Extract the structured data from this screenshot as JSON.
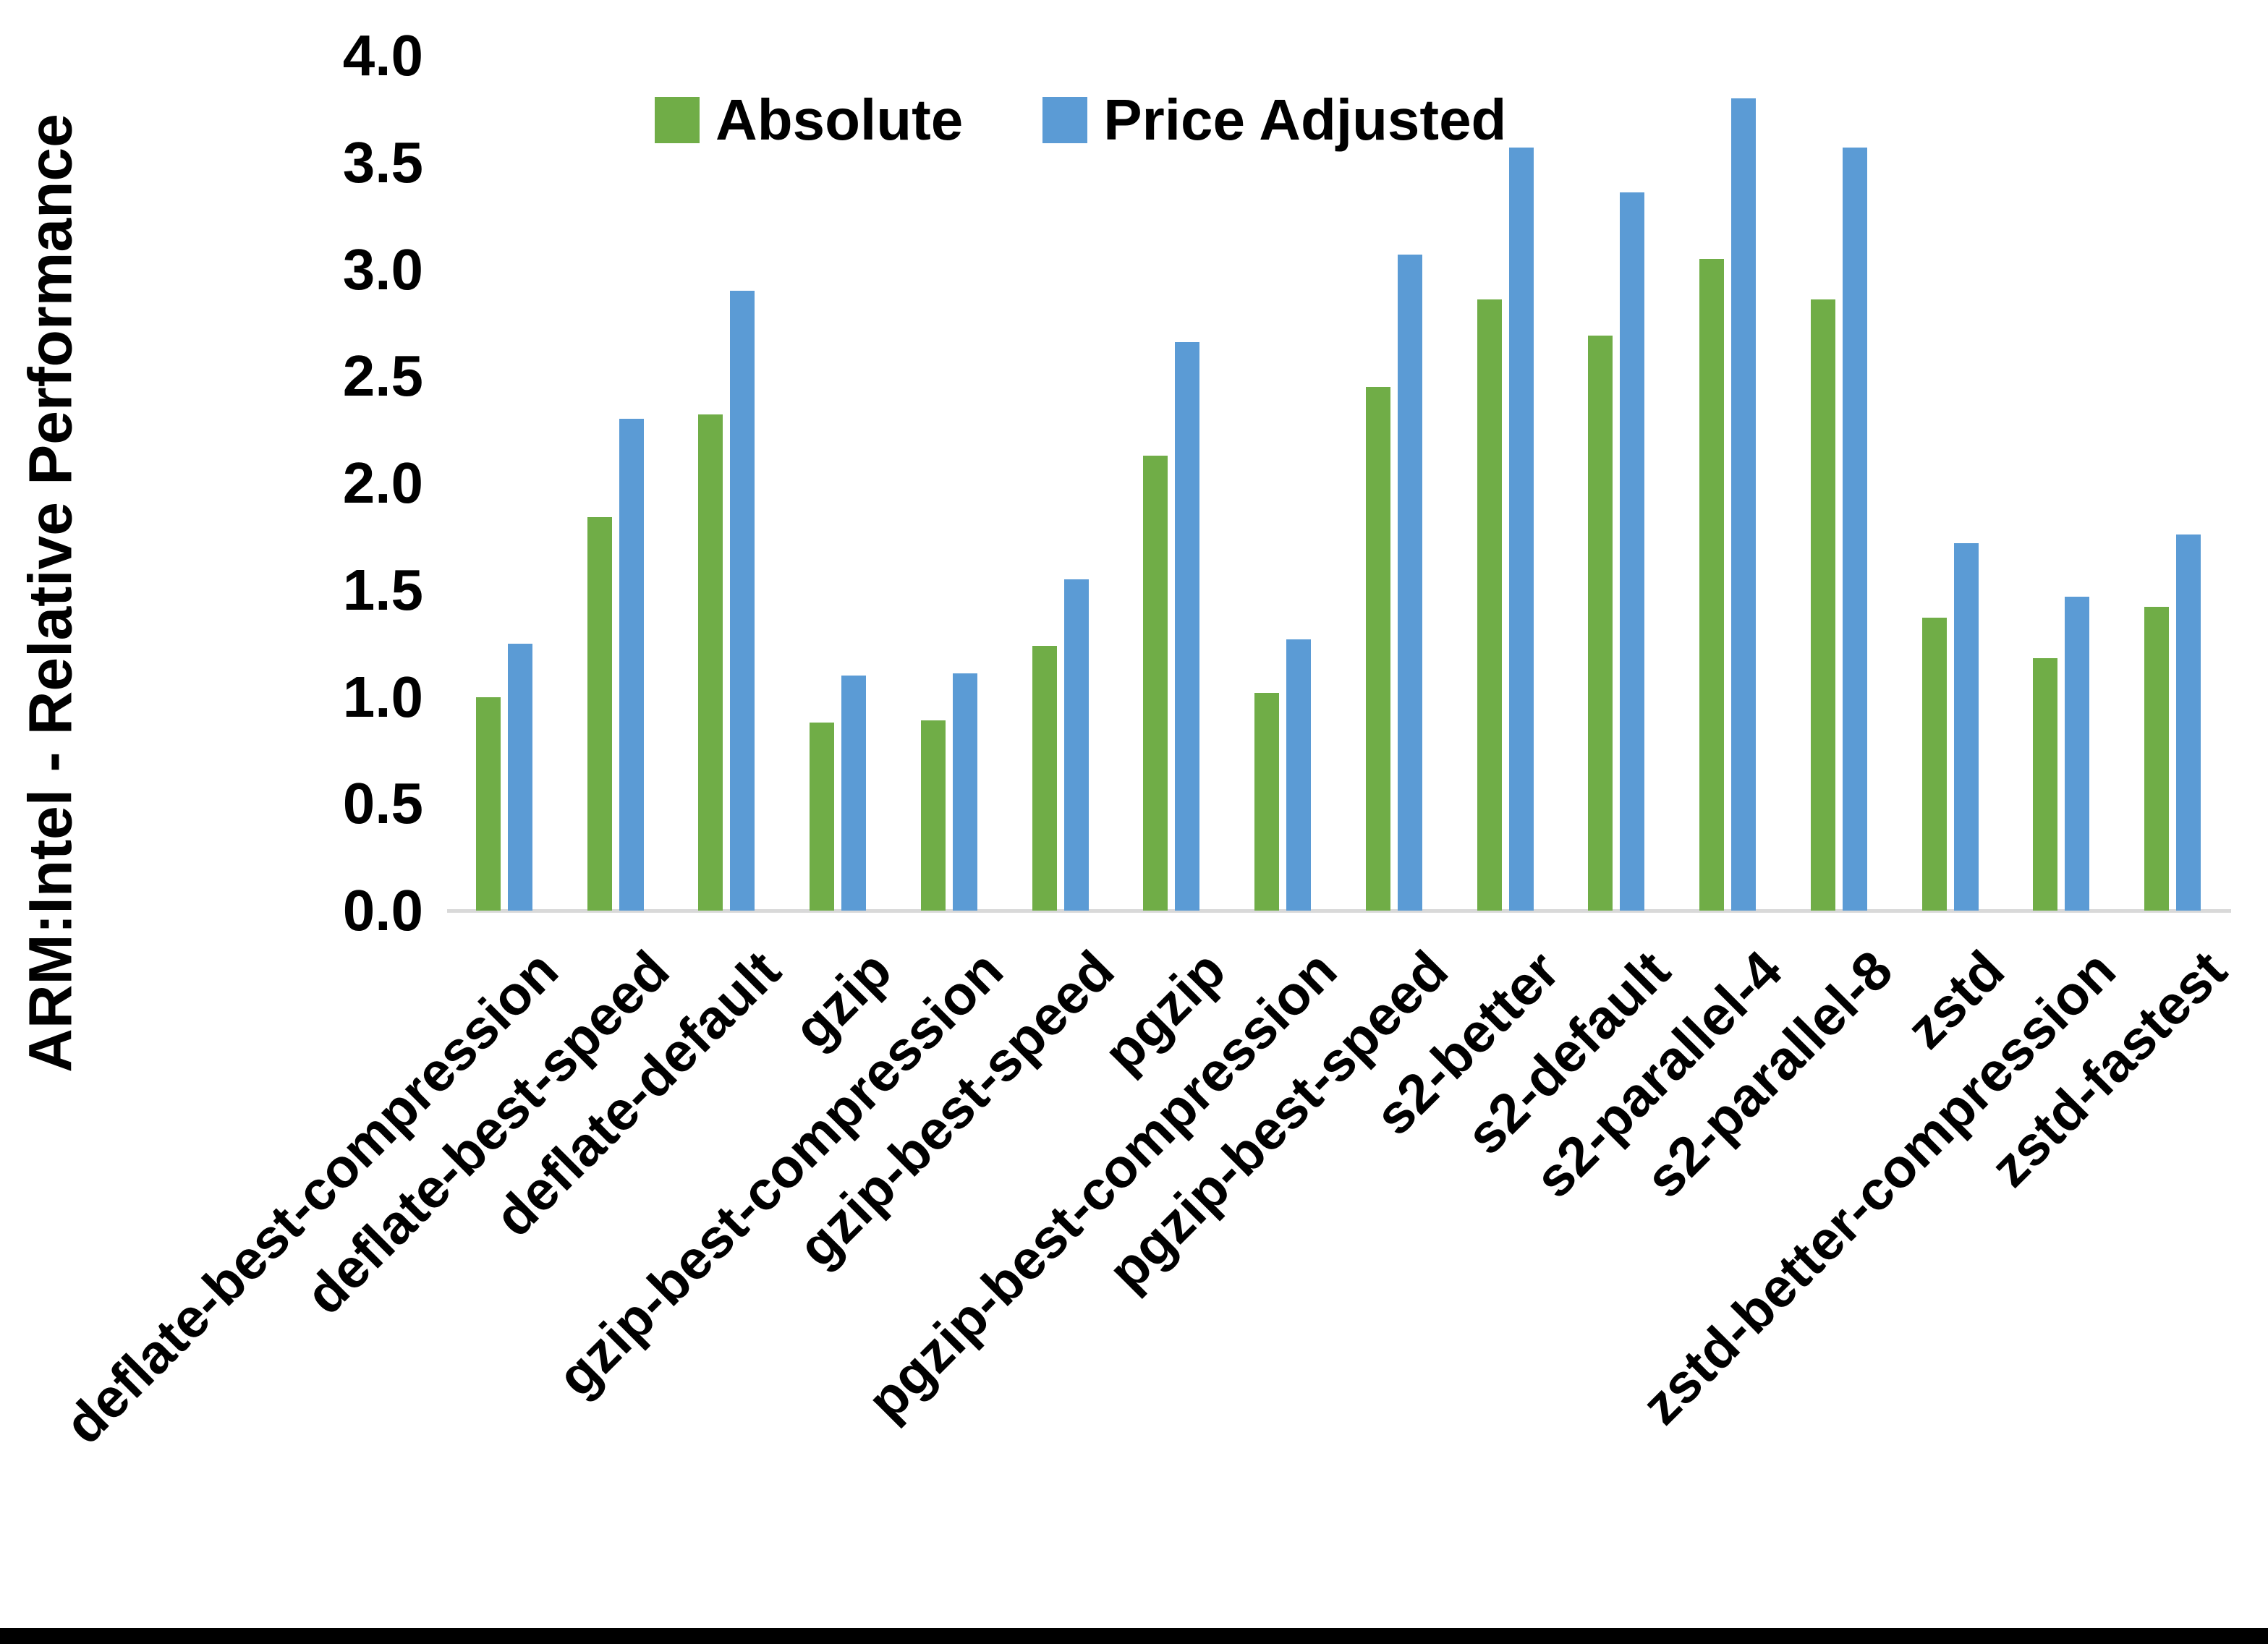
{
  "chart_data": {
    "type": "bar",
    "title": "",
    "ylabel": "ARM:Intel - Relative Performance",
    "xlabel": "",
    "ylim": [
      0.0,
      4.0
    ],
    "ytick_step": 0.5,
    "ytick_labels": [
      "0.0",
      "0.5",
      "1.0",
      "1.5",
      "2.0",
      "2.5",
      "3.0",
      "3.5",
      "4.0"
    ],
    "grid": false,
    "legend_position": "top-center",
    "categories": [
      "deflate-best-compression",
      "deflate-best-speed",
      "deflate-default",
      "gzip",
      "gzip-best-compression",
      "gzip-best-speed",
      "pgzip",
      "pgzip-best-compression",
      "pgzip-best-speed",
      "s2-better",
      "s2-default",
      "s2-parallel-4",
      "s2-parallel-8",
      "zstd",
      "zstd-better-compression",
      "zstd-fastest"
    ],
    "series": [
      {
        "name": "Absolute",
        "color": "#70AD47",
        "values": [
          1.0,
          1.84,
          2.32,
          0.88,
          0.89,
          1.24,
          2.13,
          1.02,
          2.45,
          2.86,
          2.69,
          3.05,
          2.86,
          1.37,
          1.18,
          1.42
        ]
      },
      {
        "name": "Price Adjusted",
        "color": "#5B9BD5",
        "values": [
          1.25,
          2.3,
          2.9,
          1.1,
          1.11,
          1.55,
          2.66,
          1.27,
          3.07,
          3.57,
          3.36,
          3.8,
          3.57,
          1.72,
          1.47,
          1.76
        ]
      }
    ],
    "axis_line_color": "#D9D9D9",
    "text_color": "#000000"
  }
}
